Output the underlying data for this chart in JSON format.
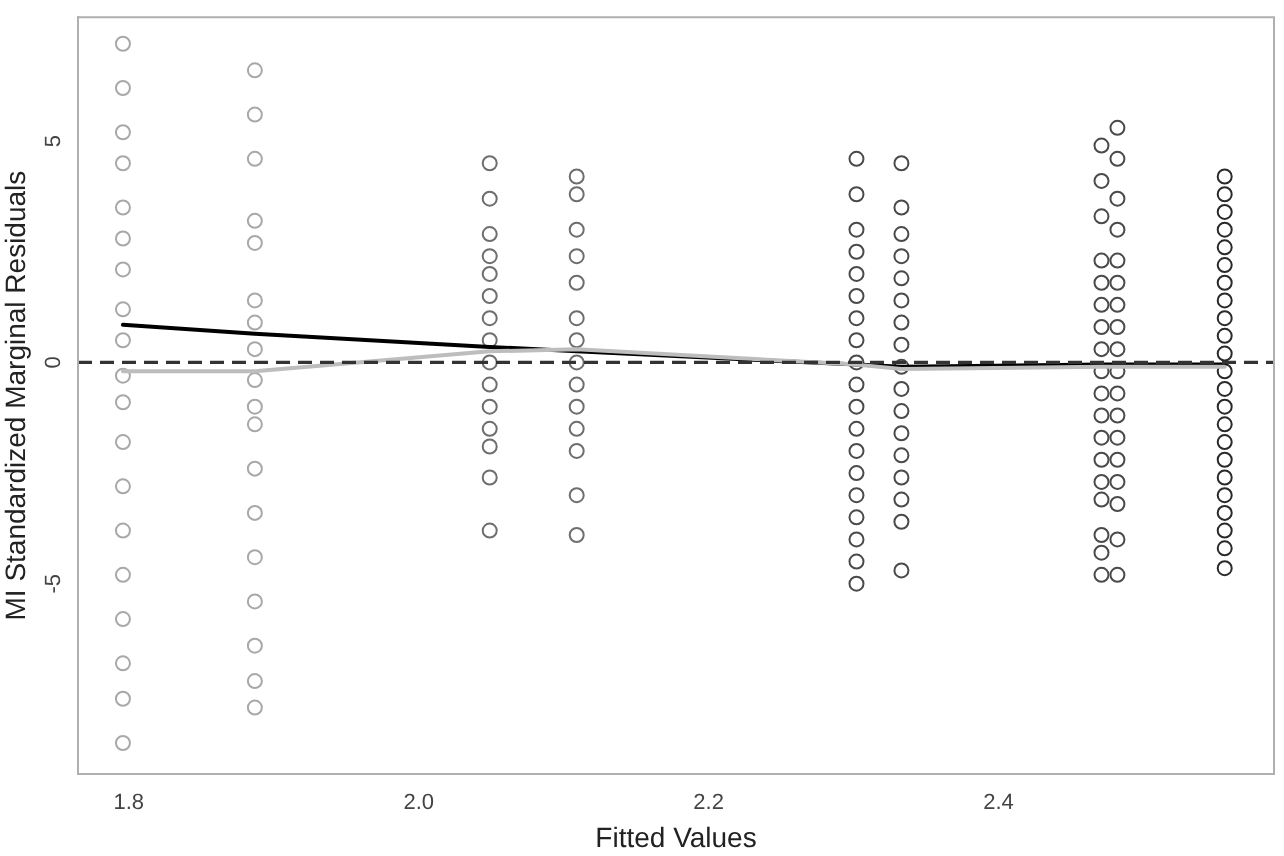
{
  "chart_data": {
    "type": "scatter",
    "xlabel": "Fitted Values",
    "ylabel": "MI Standardized Marginal Residuals",
    "xlim": [
      1.765,
      2.59
    ],
    "ylim": [
      -9.3,
      7.8
    ],
    "xticks": [
      1.8,
      {
        "value": 2,
        "label": "2.0"
      },
      2.2,
      2.4
    ],
    "yticks": [
      -5,
      0,
      5
    ],
    "grid": false,
    "legend": false,
    "marker": "circle",
    "ref_lines": [
      {
        "axis": "y",
        "value": 0,
        "color": "#333333",
        "line_style": "dashed"
      }
    ],
    "series": [
      {
        "color": "#a8a8a8",
        "x": [
          1.796,
          1.796,
          1.796,
          1.796,
          1.796,
          1.796,
          1.796,
          1.796,
          1.796,
          1.796,
          1.796,
          1.796,
          1.796,
          1.796,
          1.796,
          1.796,
          1.796,
          1.796,
          1.796
        ],
        "values": [
          7.2,
          6.2,
          5.2,
          4.5,
          3.5,
          2.8,
          2.1,
          1.2,
          0.5,
          -0.3,
          -0.9,
          -1.8,
          -2.8,
          -3.8,
          -4.8,
          -5.8,
          -6.8,
          -7.6,
          -8.6
        ]
      },
      {
        "color": "#a8a8a8",
        "x": [
          1.887,
          1.887,
          1.887,
          1.887,
          1.887,
          1.887,
          1.887,
          1.887,
          1.887,
          1.887,
          1.887,
          1.887,
          1.887,
          1.887,
          1.887,
          1.887,
          1.887,
          1.887
        ],
        "values": [
          6.6,
          5.6,
          4.6,
          3.2,
          2.7,
          1.4,
          0.9,
          0.3,
          -0.4,
          -1.0,
          -1.4,
          -2.4,
          -3.4,
          -4.4,
          -5.4,
          -6.4,
          -7.2,
          -7.8
        ]
      },
      {
        "color": "#6e6e6e",
        "x": [
          2.049,
          2.049,
          2.049,
          2.049,
          2.049,
          2.049,
          2.049,
          2.049,
          2.049,
          2.049,
          2.049,
          2.049,
          2.049,
          2.049,
          2.049
        ],
        "values": [
          4.5,
          3.7,
          2.9,
          2.4,
          2.0,
          1.5,
          1.0,
          0.5,
          0,
          -0.5,
          -1.0,
          -1.5,
          -1.9,
          -2.6,
          -3.8
        ]
      },
      {
        "color": "#6e6e6e",
        "x": [
          2.109,
          2.109,
          2.109,
          2.109,
          2.109,
          2.109,
          2.109,
          2.109,
          2.109,
          2.109,
          2.109,
          2.109,
          2.109,
          2.109
        ],
        "values": [
          4.2,
          3.8,
          3.0,
          2.4,
          1.8,
          1.0,
          0.5,
          0,
          -0.5,
          -1.0,
          -1.5,
          -2.0,
          -3.0,
          -3.9
        ]
      },
      {
        "color": "#4a4a4a",
        "x": [
          2.302,
          2.302,
          2.302,
          2.302,
          2.302,
          2.302,
          2.302,
          2.302,
          2.302,
          2.302,
          2.302,
          2.302,
          2.302,
          2.302,
          2.302,
          2.302,
          2.302,
          2.302,
          2.302
        ],
        "values": [
          4.6,
          3.8,
          3.0,
          2.5,
          2.0,
          1.5,
          1.0,
          0.5,
          0,
          -0.5,
          -1.0,
          -1.5,
          -2.0,
          -2.5,
          -3.0,
          -3.5,
          -4.0,
          -4.5,
          -5.0
        ]
      },
      {
        "color": "#4a4a4a",
        "x": [
          2.333,
          2.333,
          2.333,
          2.333,
          2.333,
          2.333,
          2.333,
          2.333,
          2.333,
          2.333,
          2.333,
          2.333,
          2.333,
          2.333,
          2.333,
          2.333,
          2.333
        ],
        "values": [
          4.5,
          3.5,
          2.9,
          2.4,
          1.9,
          1.4,
          0.9,
          0.4,
          -0.1,
          -0.6,
          -1.1,
          -1.6,
          -2.1,
          -2.6,
          -3.1,
          -3.6,
          -4.7
        ]
      },
      {
        "color": "#4a4a4a",
        "x": [
          2.471,
          2.471,
          2.471,
          2.471,
          2.471,
          2.471,
          2.471,
          2.471,
          2.471,
          2.471,
          2.471,
          2.471,
          2.471,
          2.471,
          2.471,
          2.471,
          2.471,
          2.471
        ],
        "values": [
          4.9,
          4.1,
          3.3,
          2.3,
          1.8,
          1.3,
          0.8,
          0.3,
          -0.2,
          -0.7,
          -1.2,
          -1.7,
          -2.2,
          -2.7,
          -3.1,
          -3.9,
          -4.3,
          -4.8
        ]
      },
      {
        "color": "#4a4a4a",
        "x": [
          2.482,
          2.482,
          2.482,
          2.482,
          2.482,
          2.482,
          2.482,
          2.482,
          2.482,
          2.482,
          2.482,
          2.482,
          2.482,
          2.482,
          2.482,
          2.482,
          2.482,
          2.482
        ],
        "values": [
          5.3,
          4.6,
          3.7,
          3.0,
          2.3,
          1.8,
          1.3,
          0.8,
          0.3,
          -0.2,
          -0.7,
          -1.2,
          -1.7,
          -2.2,
          -2.7,
          -3.2,
          -4.0,
          -4.8
        ]
      },
      {
        "color": "#2a2a2a",
        "x": [
          2.556,
          2.556,
          2.556,
          2.556,
          2.556,
          2.556,
          2.556,
          2.556,
          2.556,
          2.556,
          2.556,
          2.556,
          2.556,
          2.556,
          2.556,
          2.556,
          2.556,
          2.556,
          2.556,
          2.556,
          2.556,
          2.556,
          2.556
        ],
        "values": [
          4.2,
          3.8,
          3.4,
          3.0,
          2.6,
          2.2,
          1.8,
          1.4,
          1.0,
          0.6,
          0.2,
          -0.2,
          -0.6,
          -1.0,
          -1.4,
          -1.8,
          -2.2,
          -2.6,
          -3.0,
          -3.4,
          -3.8,
          -4.2,
          -4.65
        ]
      },
      {
        "type": "line",
        "color": "#bdbdbd",
        "marker": "none",
        "line_style": "solid",
        "x": [
          1.796,
          1.887,
          2.049,
          2.109,
          2.302,
          2.333,
          2.471,
          2.482,
          2.556
        ],
        "values": [
          -0.2,
          -0.2,
          0.25,
          0.3,
          -0.05,
          -0.15,
          -0.1,
          -0.1,
          -0.1
        ]
      },
      {
        "type": "line",
        "color": "#000000",
        "marker": "none",
        "line_style": "solid",
        "x": [
          1.796,
          1.887,
          2.049,
          2.109,
          2.302,
          2.333,
          2.471,
          2.482,
          2.556
        ],
        "values": [
          0.85,
          0.65,
          0.35,
          0.25,
          -0.05,
          -0.1,
          -0.05,
          -0.05,
          -0.05
        ]
      }
    ]
  }
}
